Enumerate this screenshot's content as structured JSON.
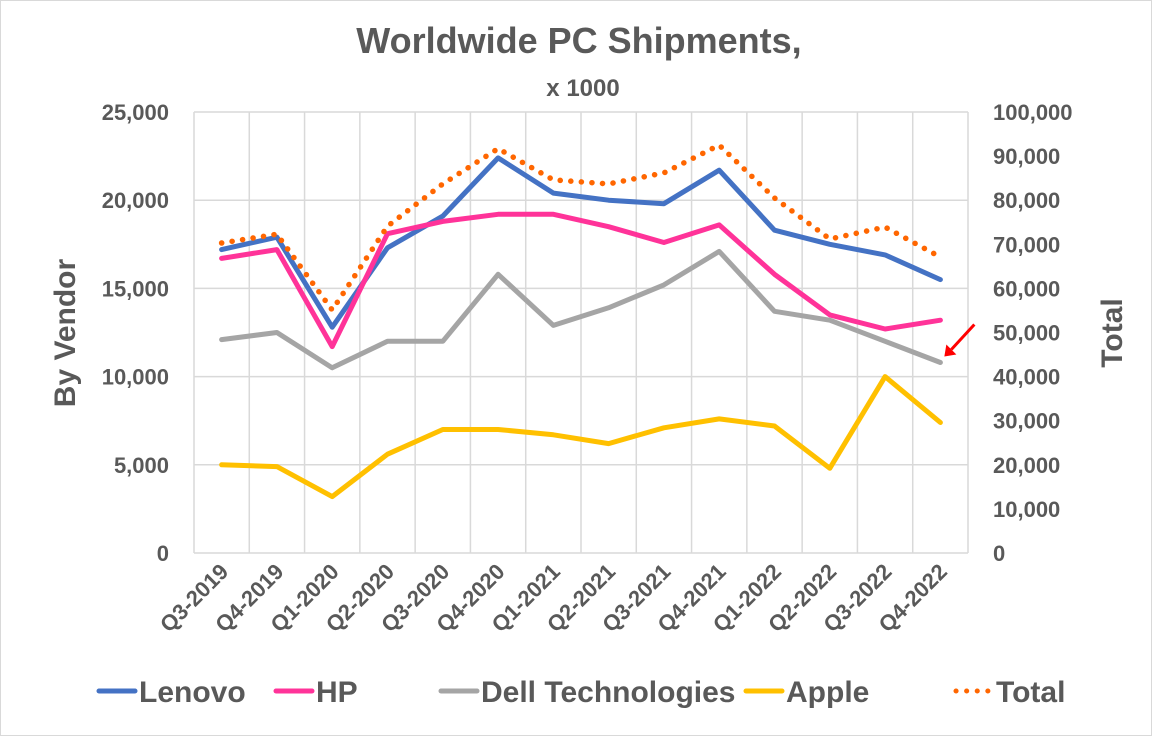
{
  "chart_data": {
    "type": "line",
    "title": "Worldwide PC Shipments,",
    "subtitle": "x 1000",
    "xlabel": "",
    "ylabel": "By Vendor",
    "y2label": "Total",
    "ylim": [
      0,
      25000
    ],
    "y2lim": [
      0,
      100000
    ],
    "yticks": [
      "0",
      "5,000",
      "10,000",
      "15,000",
      "20,000",
      "25,000"
    ],
    "y2ticks": [
      "0",
      "10,000",
      "20,000",
      "30,000",
      "40,000",
      "50,000",
      "60,000",
      "70,000",
      "80,000",
      "90,000",
      "100,000"
    ],
    "grid": true,
    "legend_position": "bottom",
    "categories": [
      "Q3-2019",
      "Q4-2019",
      "Q1-2020",
      "Q2-2020",
      "Q3-2020",
      "Q4-2020",
      "Q1-2021",
      "Q2-2021",
      "Q3-2021",
      "Q4-2021",
      "Q1-2022",
      "Q2-2022",
      "Q3-2022",
      "Q4-2022"
    ],
    "series": [
      {
        "name": "Lenovo",
        "axis": "left",
        "color": "#4472C4",
        "style": "solid",
        "values": [
          17200,
          17900,
          12800,
          17300,
          19100,
          22400,
          20400,
          20000,
          19800,
          21700,
          18300,
          17500,
          16900,
          15500
        ]
      },
      {
        "name": "HP",
        "axis": "left",
        "color": "#FF3399",
        "style": "solid",
        "values": [
          16700,
          17200,
          11700,
          18100,
          18800,
          19200,
          19200,
          18500,
          17600,
          18600,
          15800,
          13500,
          12700,
          13200
        ]
      },
      {
        "name": "Dell Technologies",
        "axis": "left",
        "color": "#A5A5A5",
        "style": "solid",
        "values": [
          12100,
          12500,
          10500,
          12000,
          12000,
          15800,
          12900,
          13900,
          15200,
          17100,
          13700,
          13200,
          12000,
          10800
        ]
      },
      {
        "name": "Apple",
        "axis": "left",
        "color": "#FFC000",
        "style": "solid",
        "values": [
          5000,
          4900,
          3200,
          5600,
          7000,
          7000,
          6700,
          6200,
          7100,
          7600,
          7200,
          4800,
          10000,
          7400
        ]
      },
      {
        "name": "Total",
        "axis": "right",
        "color": "#FF6600",
        "style": "dotted",
        "values": [
          70300,
          72300,
          55100,
          74100,
          83700,
          91700,
          84600,
          83700,
          86200,
          92500,
          80500,
          71200,
          73900,
          67100
        ]
      }
    ],
    "annotations": [
      {
        "type": "arrow",
        "color": "#FF0000",
        "points_to": {
          "series": "Dell Technologies",
          "category": "Q4-2022"
        }
      }
    ]
  }
}
